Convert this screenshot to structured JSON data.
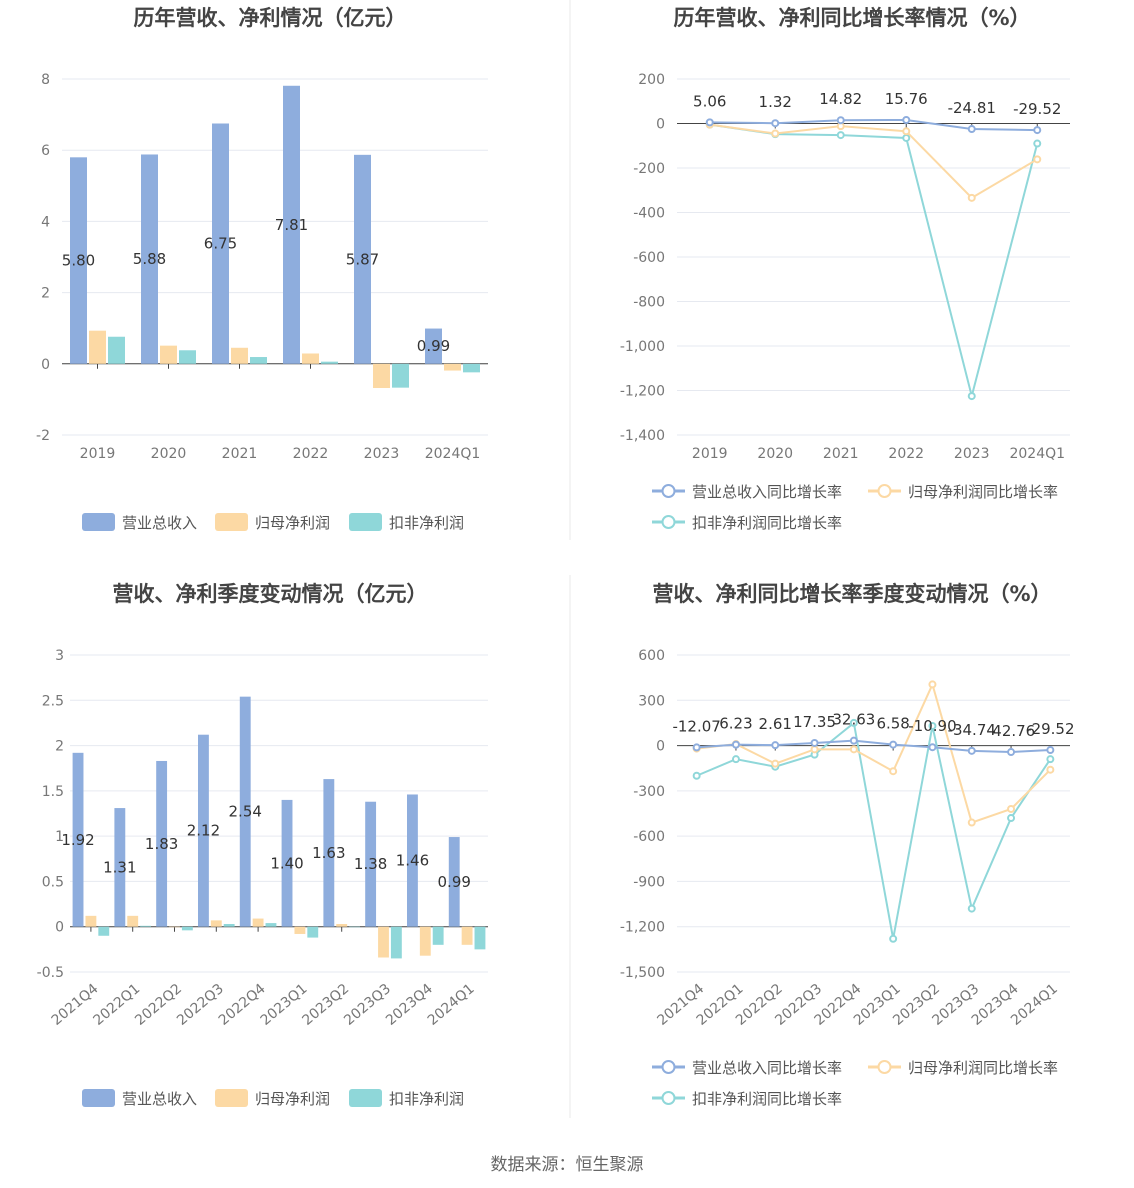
{
  "colors": {
    "revenue": "#8eaddd",
    "net_profit": "#fcd9a4",
    "deducted_profit": "#8fd7d9"
  },
  "source": "数据来源：恒生聚源",
  "chart_data": [
    {
      "type": "bar",
      "title": "历年营收、净利情况（亿元）",
      "categories": [
        "2019",
        "2020",
        "2021",
        "2022",
        "2023",
        "2024Q1"
      ],
      "ylim": [
        -2,
        8
      ],
      "yticks": [
        "-2",
        "0",
        "2",
        "4",
        "6",
        "8"
      ],
      "series": [
        {
          "name": "营业总收入",
          "values": [
            5.8,
            5.88,
            6.75,
            7.81,
            5.87,
            0.99
          ]
        },
        {
          "name": "归母净利润",
          "values": [
            0.93,
            0.51,
            0.45,
            0.29,
            -0.68,
            -0.19
          ]
        },
        {
          "name": "扣非净利润",
          "values": [
            0.76,
            0.38,
            0.19,
            0.06,
            -0.67,
            -0.24
          ]
        }
      ],
      "labels": [
        "5.80",
        "5.88",
        "6.75",
        "7.81",
        "5.87",
        "0.99"
      ],
      "legend": "bottom"
    },
    {
      "type": "line",
      "title": "历年营收、净利同比增长率情况（%）",
      "categories": [
        "2019",
        "2020",
        "2021",
        "2022",
        "2023",
        "2024Q1"
      ],
      "ylim": [
        -1400,
        200
      ],
      "yticks": [
        "-1,400",
        "-1,200",
        "-1,000",
        "-800",
        "-600",
        "-400",
        "-200",
        "0",
        "200"
      ],
      "series": [
        {
          "name": "营业总收入同比增长率",
          "values": [
            5.06,
            1.32,
            14.82,
            15.76,
            -24.81,
            -29.52
          ]
        },
        {
          "name": "归母净利润同比增长率",
          "values": [
            -5,
            -45,
            -12,
            -35,
            -334,
            -161
          ]
        },
        {
          "name": "扣非净利润同比增长率",
          "values": [
            -5,
            -48,
            -52,
            -65,
            -1225,
            -90
          ]
        }
      ],
      "labels": [
        "5.06",
        "1.32",
        "14.82",
        "15.76",
        "-24.81",
        "-29.52"
      ],
      "legend": "bottom"
    },
    {
      "type": "bar",
      "title": "营收、净利季度变动情况（亿元）",
      "categories": [
        "2021Q4",
        "2022Q1",
        "2022Q2",
        "2022Q3",
        "2022Q4",
        "2023Q1",
        "2023Q2",
        "2023Q3",
        "2023Q4",
        "2024Q1"
      ],
      "ylim": [
        -0.5,
        3
      ],
      "yticks": [
        "-0.5",
        "0",
        "0.5",
        "1",
        "1.5",
        "2",
        "2.5",
        "3"
      ],
      "series": [
        {
          "name": "营业总收入",
          "values": [
            1.92,
            1.31,
            1.83,
            2.12,
            2.54,
            1.4,
            1.63,
            1.38,
            1.46,
            0.99
          ]
        },
        {
          "name": "归母净利润",
          "values": [
            0.12,
            0.12,
            0.0,
            0.07,
            0.09,
            -0.08,
            0.03,
            -0.34,
            -0.32,
            -0.2
          ]
        },
        {
          "name": "扣非净利润",
          "values": [
            -0.1,
            0.01,
            -0.04,
            0.03,
            0.04,
            -0.12,
            0.0,
            -0.35,
            -0.2,
            -0.25
          ]
        }
      ],
      "labels": [
        "1.92",
        "1.31",
        "1.83",
        "2.12",
        "2.54",
        "1.40",
        "1.63",
        "1.38",
        "1.46",
        "0.99"
      ],
      "legend": "bottom"
    },
    {
      "type": "line",
      "title": "营收、净利同比增长率季度变动情况（%）",
      "categories": [
        "2021Q4",
        "2022Q1",
        "2022Q2",
        "2022Q3",
        "2022Q4",
        "2023Q1",
        "2023Q2",
        "2023Q3",
        "2023Q4",
        "2024Q1"
      ],
      "ylim": [
        -1500,
        600
      ],
      "yticks": [
        "-1,500",
        "-1,200",
        "-900",
        "-600",
        "-300",
        "0",
        "300",
        "600"
      ],
      "series": [
        {
          "name": "营业总收入同比增长率",
          "values": [
            -12.07,
            6.23,
            2.61,
            17.35,
            32.63,
            6.58,
            -10.9,
            -34.74,
            -42.76,
            -29.52
          ]
        },
        {
          "name": "归母净利润同比增长率",
          "values": [
            -20,
            10,
            -120,
            -25,
            -25,
            -170,
            405,
            -510,
            -420,
            -160
          ]
        },
        {
          "name": "扣非净利润同比增长率",
          "values": [
            -200,
            -90,
            -140,
            -60,
            150,
            -1280,
            130,
            -1080,
            -480,
            -90
          ]
        }
      ],
      "labels": [
        "-12.07",
        "6.23",
        "2.61",
        "17.35",
        "32.63",
        "6.58",
        "-10.90",
        "-34.74",
        "-42.76",
        "-29.52"
      ],
      "legend": "bottom"
    }
  ]
}
